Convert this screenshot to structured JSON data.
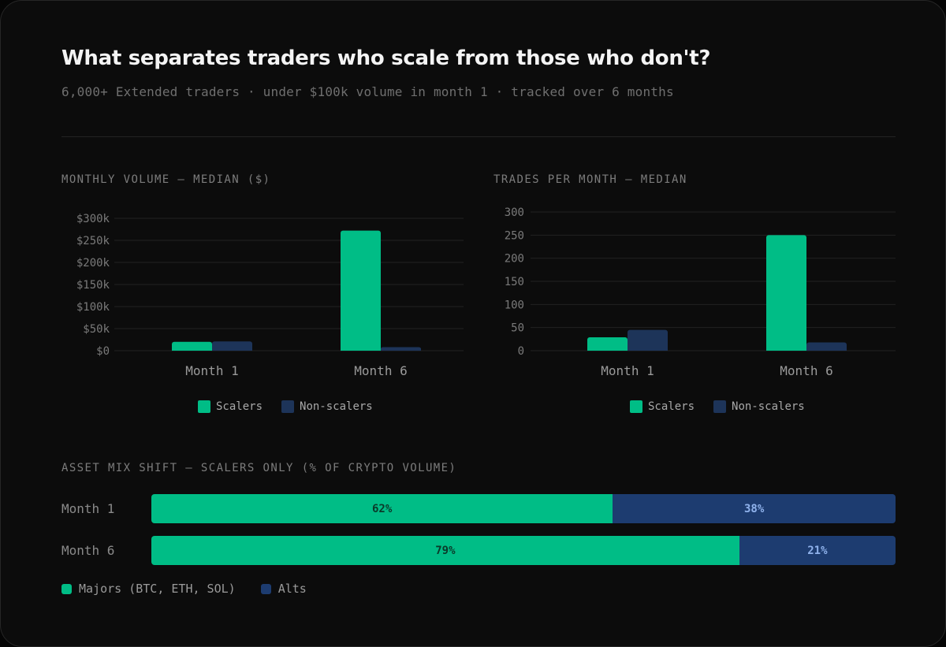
{
  "title": "What separates traders who scale from those who don't?",
  "subtitle": "6,000+ Extended traders · under $100k volume in month 1 · tracked over 6 months",
  "colors": {
    "scalers": "#00bd86",
    "non_scalers": "#1d3459",
    "majors": "#00bd86",
    "alts": "#1d3c70",
    "grid": "#222222",
    "axis_text": "#7a7a7a",
    "category_text": "#9a9a9a"
  },
  "chart_data": [
    {
      "type": "bar",
      "title": "MONTHLY VOLUME — MEDIAN ($)",
      "categories": [
        "Month 1",
        "Month 6"
      ],
      "series": [
        {
          "name": "Scalers",
          "values": [
            20000,
            272000
          ]
        },
        {
          "name": "Non-scalers",
          "values": [
            21000,
            8000
          ]
        }
      ],
      "ylim": [
        0,
        300000
      ],
      "yticks": [
        0,
        50000,
        100000,
        150000,
        200000,
        250000,
        300000
      ],
      "ytick_labels": [
        "$0",
        "$50k",
        "$100k",
        "$150k",
        "$200k",
        "$250k",
        "$300k"
      ],
      "legend": [
        "Scalers",
        "Non-scalers"
      ]
    },
    {
      "type": "bar",
      "title": "TRADES PER MONTH — MEDIAN",
      "categories": [
        "Month 1",
        "Month 6"
      ],
      "series": [
        {
          "name": "Scalers",
          "values": [
            29,
            250
          ]
        },
        {
          "name": "Non-scalers",
          "values": [
            45,
            18
          ]
        }
      ],
      "ylim": [
        0,
        300
      ],
      "yticks": [
        0,
        50,
        100,
        150,
        200,
        250,
        300
      ],
      "ytick_labels": [
        "0",
        "50",
        "100",
        "150",
        "200",
        "250",
        "300"
      ],
      "legend": [
        "Scalers",
        "Non-scalers"
      ]
    },
    {
      "type": "bar",
      "stacked": true,
      "orientation": "horizontal",
      "title": "ASSET MIX SHIFT — SCALERS ONLY (% OF CRYPTO VOLUME)",
      "categories": [
        "Month 1",
        "Month 6"
      ],
      "series": [
        {
          "name": "Majors (BTC, ETH, SOL)",
          "values": [
            62,
            79
          ],
          "labels": [
            "62%",
            "79%"
          ]
        },
        {
          "name": "Alts",
          "values": [
            38,
            21
          ],
          "labels": [
            "38%",
            "21%"
          ]
        }
      ],
      "legend": [
        "Majors (BTC, ETH, SOL)",
        "Alts"
      ]
    }
  ]
}
